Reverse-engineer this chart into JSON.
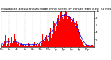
{
  "title": "Milwaukee Actual and Average Wind Speed by Minute mph (Last 24 Hours)",
  "bar_color": "#ff0000",
  "line_color": "#0000ff",
  "background_color": "#ffffff",
  "plot_bg_color": "#ffffff",
  "n_points": 144,
  "ylim": [
    0,
    10
  ],
  "yticks": [
    2,
    4,
    6,
    8,
    10
  ],
  "grid_color": "#bbbbbb",
  "title_fontsize": 3.2,
  "tick_fontsize": 2.8,
  "seed": 17,
  "actual": [
    0.5,
    1.2,
    0.3,
    2.1,
    0.8,
    1.5,
    3.2,
    1.0,
    0.4,
    0.7,
    1.8,
    2.5,
    0.3,
    0.6,
    1.1,
    2.8,
    1.4,
    0.2,
    0.9,
    1.7,
    3.5,
    4.2,
    2.1,
    1.3,
    0.4,
    0.8,
    1.2,
    0.5,
    0.3,
    0.7,
    1.0,
    0.4,
    0.2,
    0.6,
    0.8,
    1.1,
    0.3,
    0.5,
    0.8,
    0.4,
    0.2,
    0.6,
    1.2,
    0.7,
    0.3,
    0.5,
    0.9,
    0.4,
    0.2,
    0.4,
    0.7,
    1.3,
    0.5,
    0.3,
    0.8,
    1.6,
    0.4,
    0.7,
    1.1,
    0.5,
    0.3,
    0.6,
    1.0,
    2.1,
    3.4,
    1.8,
    0.9,
    1.5,
    2.8,
    4.1,
    3.2,
    2.0,
    1.5,
    2.3,
    3.8,
    5.2,
    4.6,
    3.1,
    2.4,
    3.7,
    5.8,
    7.2,
    6.4,
    5.1,
    4.3,
    5.7,
    8.1,
    9.3,
    8.7,
    7.2,
    6.5,
    7.8,
    9.5,
    10.0,
    9.2,
    8.4,
    7.6,
    8.9,
    9.8,
    10.0,
    9.5,
    8.8,
    7.9,
    8.5,
    9.2,
    8.6,
    7.8,
    8.3,
    7.5,
    6.8,
    7.4,
    8.1,
    7.2,
    6.5,
    5.8,
    6.3,
    7.0,
    6.2,
    5.5,
    4.9,
    4.2,
    3.6,
    2.9,
    2.3,
    1.8,
    1.4,
    0.9,
    0.6,
    0.4,
    0.7,
    0.3,
    0.5,
    0.2,
    0.4,
    0.6,
    0.3,
    0.5,
    0.2,
    0.4,
    0.6,
    0.3,
    0.5,
    0.2,
    0.3
  ],
  "x_tick_every": 12,
  "x_tick_labels": [
    "12a",
    "2a",
    "4a",
    "6a",
    "8a",
    "10a",
    "12p",
    "2p",
    "4p",
    "6p",
    "8p",
    "10p",
    "12a"
  ]
}
